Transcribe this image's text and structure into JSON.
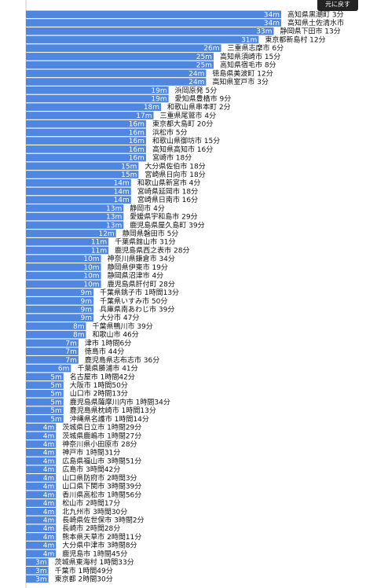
{
  "back_button": {
    "label": "元に戻す"
  },
  "chart_data": {
    "type": "bar",
    "orientation": "horizontal",
    "value_suffix": "m",
    "xlim": [
      0,
      35
    ],
    "bars": [
      {
        "value": 34,
        "label": "高知県黒潮町",
        "time": "3分"
      },
      {
        "value": 34,
        "label": "高知県土佐清水市",
        "time": ""
      },
      {
        "value": 33,
        "label": "静岡県下田市",
        "time": "13分"
      },
      {
        "value": 31,
        "label": "東京都新島村",
        "time": "12分"
      },
      {
        "value": 26,
        "label": "三重県志摩市",
        "time": "6分"
      },
      {
        "value": 25,
        "label": "高知県須崎市",
        "time": "15分"
      },
      {
        "value": 25,
        "label": "高知県宿毛市",
        "time": "8分"
      },
      {
        "value": 24,
        "label": "徳島県美波町",
        "time": "12分"
      },
      {
        "value": 24,
        "label": "高知県室戸市",
        "time": "3分"
      },
      {
        "value": 19,
        "label": "浜岡原発",
        "time": "5分"
      },
      {
        "value": 19,
        "label": "愛知県豊橋市",
        "time": "9分"
      },
      {
        "value": 18,
        "label": "和歌山県串本町",
        "time": "2分"
      },
      {
        "value": 17,
        "label": "三重県尾鷲市",
        "time": "4分"
      },
      {
        "value": 16,
        "label": "東京都大島町",
        "time": "20分"
      },
      {
        "value": 16,
        "label": "浜松市",
        "time": "5分"
      },
      {
        "value": 16,
        "label": "和歌山県御坊市",
        "time": "15分"
      },
      {
        "value": 16,
        "label": "高知県高知市",
        "time": "16分"
      },
      {
        "value": 16,
        "label": "宮崎市",
        "time": "18分"
      },
      {
        "value": 15,
        "label": "大分県佐伯市",
        "time": "18分"
      },
      {
        "value": 15,
        "label": "宮崎県日向市",
        "time": "18分"
      },
      {
        "value": 14,
        "label": "和歌山県新宮市",
        "time": "4分"
      },
      {
        "value": 14,
        "label": "宮崎県延岡市",
        "time": "18分"
      },
      {
        "value": 14,
        "label": "宮崎県日南市",
        "time": "16分"
      },
      {
        "value": 13,
        "label": "静岡市",
        "time": "4分"
      },
      {
        "value": 13,
        "label": "愛媛県宇和島市",
        "time": "29分"
      },
      {
        "value": 13,
        "label": "鹿児島県屋久島町",
        "time": "39分"
      },
      {
        "value": 12,
        "label": "静岡県磐田市",
        "time": "5分"
      },
      {
        "value": 11,
        "label": "千葉県館山市",
        "time": "31分"
      },
      {
        "value": 11,
        "label": "鹿児島県西之表市",
        "time": "28分"
      },
      {
        "value": 10,
        "label": "神奈川県鎌倉市",
        "time": "34分"
      },
      {
        "value": 10,
        "label": "静岡県伊東市",
        "time": "19分"
      },
      {
        "value": 10,
        "label": "静岡県沼津市",
        "time": "4分"
      },
      {
        "value": 10,
        "label": "鹿児島県肝付町",
        "time": "28分"
      },
      {
        "value": 9,
        "label": "千葉県銚子市",
        "time": "1時間13分"
      },
      {
        "value": 9,
        "label": "千葉県いすみ市",
        "time": "50分"
      },
      {
        "value": 9,
        "label": "兵庫県南あわじ市",
        "time": "39分"
      },
      {
        "value": 9,
        "label": "大分市",
        "time": "47分"
      },
      {
        "value": 8,
        "label": "千葉県鴨川市",
        "time": "39分"
      },
      {
        "value": 8,
        "label": "和歌山市",
        "time": "46分"
      },
      {
        "value": 7,
        "label": "津市",
        "time": "1時間6分"
      },
      {
        "value": 7,
        "label": "徳島市",
        "time": "44分"
      },
      {
        "value": 7,
        "label": "鹿児島県志布志市",
        "time": "36分"
      },
      {
        "value": 6,
        "label": "千葉県勝浦市",
        "time": "41分"
      },
      {
        "value": 5,
        "label": "名古屋市",
        "time": "1時間42分"
      },
      {
        "value": 5,
        "label": "大阪市",
        "time": "1時間50分"
      },
      {
        "value": 5,
        "label": "山口市",
        "time": "2時間13分"
      },
      {
        "value": 5,
        "label": "鹿児島県薩摩川内市",
        "time": "1時間34分"
      },
      {
        "value": 5,
        "label": "鹿児島県枕崎市",
        "time": "1時間13分"
      },
      {
        "value": 5,
        "label": "沖縄県名護市",
        "time": "1時間14分"
      },
      {
        "value": 4,
        "label": "茨城県日立市",
        "time": "1時間29分"
      },
      {
        "value": 4,
        "label": "茨城県鹿嶋市",
        "time": "1時間27分"
      },
      {
        "value": 4,
        "label": "神奈川県小田原市",
        "time": "28分"
      },
      {
        "value": 4,
        "label": "神戸市",
        "time": "1時間31分"
      },
      {
        "value": 4,
        "label": "広島県福山市",
        "time": "3時間51分"
      },
      {
        "value": 4,
        "label": "広島市",
        "time": "3時間42分"
      },
      {
        "value": 4,
        "label": "山口県防府市",
        "time": "2時間3分"
      },
      {
        "value": 4,
        "label": "山口県下関市",
        "time": "3時間39分"
      },
      {
        "value": 4,
        "label": "香川県高松市",
        "time": "1時間56分"
      },
      {
        "value": 4,
        "label": "松山市",
        "time": "2時間17分"
      },
      {
        "value": 4,
        "label": "北九州市",
        "time": "3時間30分"
      },
      {
        "value": 4,
        "label": "長崎県佐世保市",
        "time": "3時間2分"
      },
      {
        "value": 4,
        "label": "長崎市",
        "time": "2時間28分"
      },
      {
        "value": 4,
        "label": "熊本県天草市",
        "time": "2時間11分"
      },
      {
        "value": 4,
        "label": "大分県中津市",
        "time": "3時間8分"
      },
      {
        "value": 4,
        "label": "鹿児島市",
        "time": "1時間45分"
      },
      {
        "value": 3,
        "label": "茨城県東海村",
        "time": "1時間33分"
      },
      {
        "value": 3,
        "label": "千葉市",
        "time": "1時間49分"
      },
      {
        "value": 3,
        "label": "東京都",
        "time": "2時間30分"
      }
    ]
  }
}
